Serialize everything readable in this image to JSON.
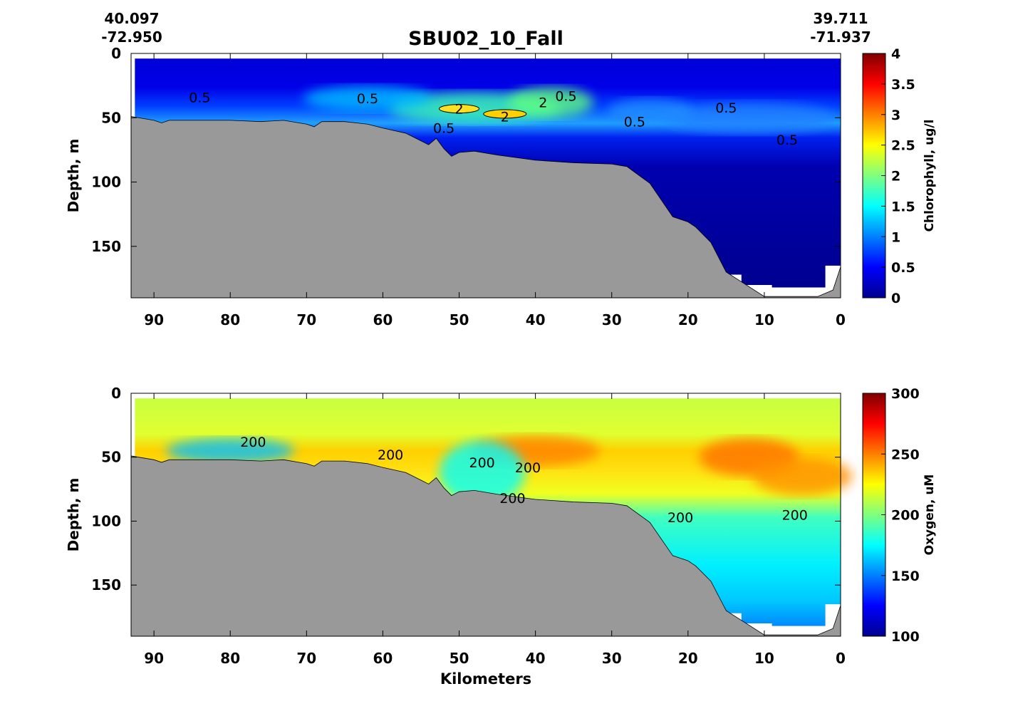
{
  "chart_data": {
    "type": "heatmap",
    "title": "SBU02_10_Fall",
    "start_position": {
      "lat": "40.097",
      "lon": "-72.950"
    },
    "end_position": {
      "lat": "39.711",
      "lon": "-71.937"
    },
    "xlabel": "Kilometers",
    "xlim": [
      93,
      0
    ],
    "x_ticks": [
      "90",
      "80",
      "70",
      "60",
      "50",
      "40",
      "30",
      "20",
      "10",
      "0"
    ],
    "x_tick_values": [
      90,
      80,
      70,
      60,
      50,
      40,
      30,
      20,
      10,
      0
    ],
    "bathymetry": [
      [
        93,
        49
      ],
      [
        90,
        52
      ],
      [
        89,
        54
      ],
      [
        88,
        52
      ],
      [
        85,
        52
      ],
      [
        80,
        52
      ],
      [
        76,
        53
      ],
      [
        73,
        52
      ],
      [
        70,
        55
      ],
      [
        69,
        57
      ],
      [
        68,
        53
      ],
      [
        65,
        53
      ],
      [
        62,
        55
      ],
      [
        60,
        58
      ],
      [
        57,
        62
      ],
      [
        55,
        68
      ],
      [
        54,
        71
      ],
      [
        53,
        66
      ],
      [
        52,
        74
      ],
      [
        51,
        80
      ],
      [
        50,
        77
      ],
      [
        48,
        76
      ],
      [
        45,
        79
      ],
      [
        40,
        83
      ],
      [
        35,
        85
      ],
      [
        30,
        86
      ],
      [
        28,
        88
      ],
      [
        25,
        101
      ],
      [
        22,
        127
      ],
      [
        20,
        131
      ],
      [
        19,
        135
      ],
      [
        17,
        147
      ],
      [
        15,
        170
      ],
      [
        10,
        189
      ],
      [
        3,
        189
      ],
      [
        1,
        184
      ],
      [
        0,
        166
      ]
    ],
    "panels": [
      {
        "name": "chlorophyll",
        "ylabel": "Depth, m",
        "ylim": [
          0,
          190
        ],
        "y_ticks": [
          "0",
          "50",
          "100",
          "150"
        ],
        "y_tick_values": [
          0,
          50,
          100,
          150
        ],
        "colorbar_label": "Chlorophyll, ug/l",
        "colorbar_range": [
          0,
          4
        ],
        "colorbar_ticks": [
          "0",
          "0.5",
          "1",
          "1.5",
          "2",
          "2.5",
          "3",
          "3.5",
          "4"
        ],
        "colorbar_tick_values": [
          0,
          0.5,
          1,
          1.5,
          2,
          2.5,
          3,
          3.5,
          4
        ],
        "colormap": [
          "#00008f",
          "#0000ff",
          "#00ffff",
          "#ffff00",
          "#ff0000",
          "#800000"
        ],
        "contour_labels": [
          {
            "text": "0.5",
            "km": 84,
            "depth": 34
          },
          {
            "text": "0.5",
            "km": 62,
            "depth": 35
          },
          {
            "text": "0.5",
            "km": 36,
            "depth": 33
          },
          {
            "text": "0.5",
            "km": 52,
            "depth": 58
          },
          {
            "text": "0.5",
            "km": 27,
            "depth": 53
          },
          {
            "text": "0.5",
            "km": 15,
            "depth": 42
          },
          {
            "text": "0.5",
            "km": 7,
            "depth": 67
          },
          {
            "text": "2",
            "km": 50,
            "depth": 43
          },
          {
            "text": "2",
            "km": 44,
            "depth": 49
          },
          {
            "text": "2",
            "km": 39,
            "depth": 38
          }
        ]
      },
      {
        "name": "oxygen",
        "ylabel": "Depth, m",
        "ylim": [
          0,
          190
        ],
        "y_ticks": [
          "0",
          "50",
          "100",
          "150"
        ],
        "y_tick_values": [
          0,
          50,
          100,
          150
        ],
        "colorbar_label": "Oxygen, uM",
        "colorbar_range": [
          100,
          300
        ],
        "colorbar_ticks": [
          "100",
          "150",
          "200",
          "250",
          "300"
        ],
        "colorbar_tick_values": [
          100,
          150,
          200,
          250,
          300
        ],
        "colormap": [
          "#00008f",
          "#0000ff",
          "#00ffff",
          "#ffff00",
          "#ff0000",
          "#800000"
        ],
        "contour_labels": [
          {
            "text": "200",
            "km": 77,
            "depth": 38
          },
          {
            "text": "200",
            "km": 59,
            "depth": 48
          },
          {
            "text": "200",
            "km": 47,
            "depth": 54
          },
          {
            "text": "200",
            "km": 41,
            "depth": 58
          },
          {
            "text": "200",
            "km": 43,
            "depth": 82
          },
          {
            "text": "200",
            "km": 21,
            "depth": 97
          },
          {
            "text": "200",
            "km": 6,
            "depth": 95
          }
        ]
      }
    ]
  }
}
